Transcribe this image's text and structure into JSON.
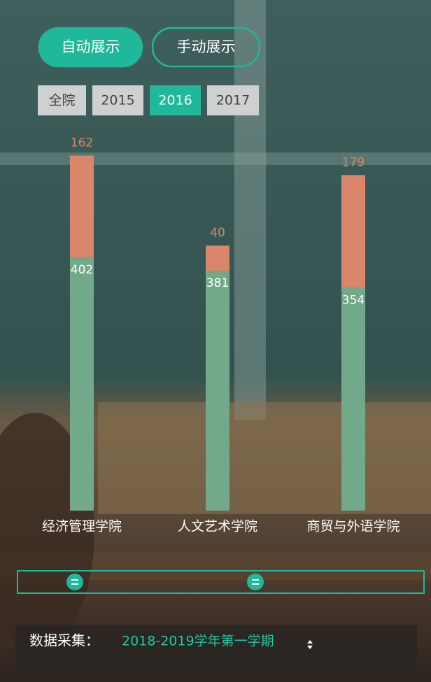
{
  "buttons": [
    "自动展示",
    "手动展示"
  ],
  "active_button_index": 0,
  "tabs": [
    "全院",
    "2015",
    "2016",
    "2017"
  ],
  "active_tab_index": 2,
  "chart_data": {
    "type": "bar",
    "stacked": true,
    "categories": [
      "经济管理学院",
      "人文艺术学院",
      "商贸与外语学院"
    ],
    "series": [
      {
        "color": "#72a98a",
        "values": [
          402,
          381,
          354
        ]
      },
      {
        "color": "#d9866a",
        "values": [
          162,
          40,
          179
        ]
      }
    ]
  },
  "footer": {
    "label": "数据采集：",
    "term": "2018-2019学年第一学期"
  }
}
